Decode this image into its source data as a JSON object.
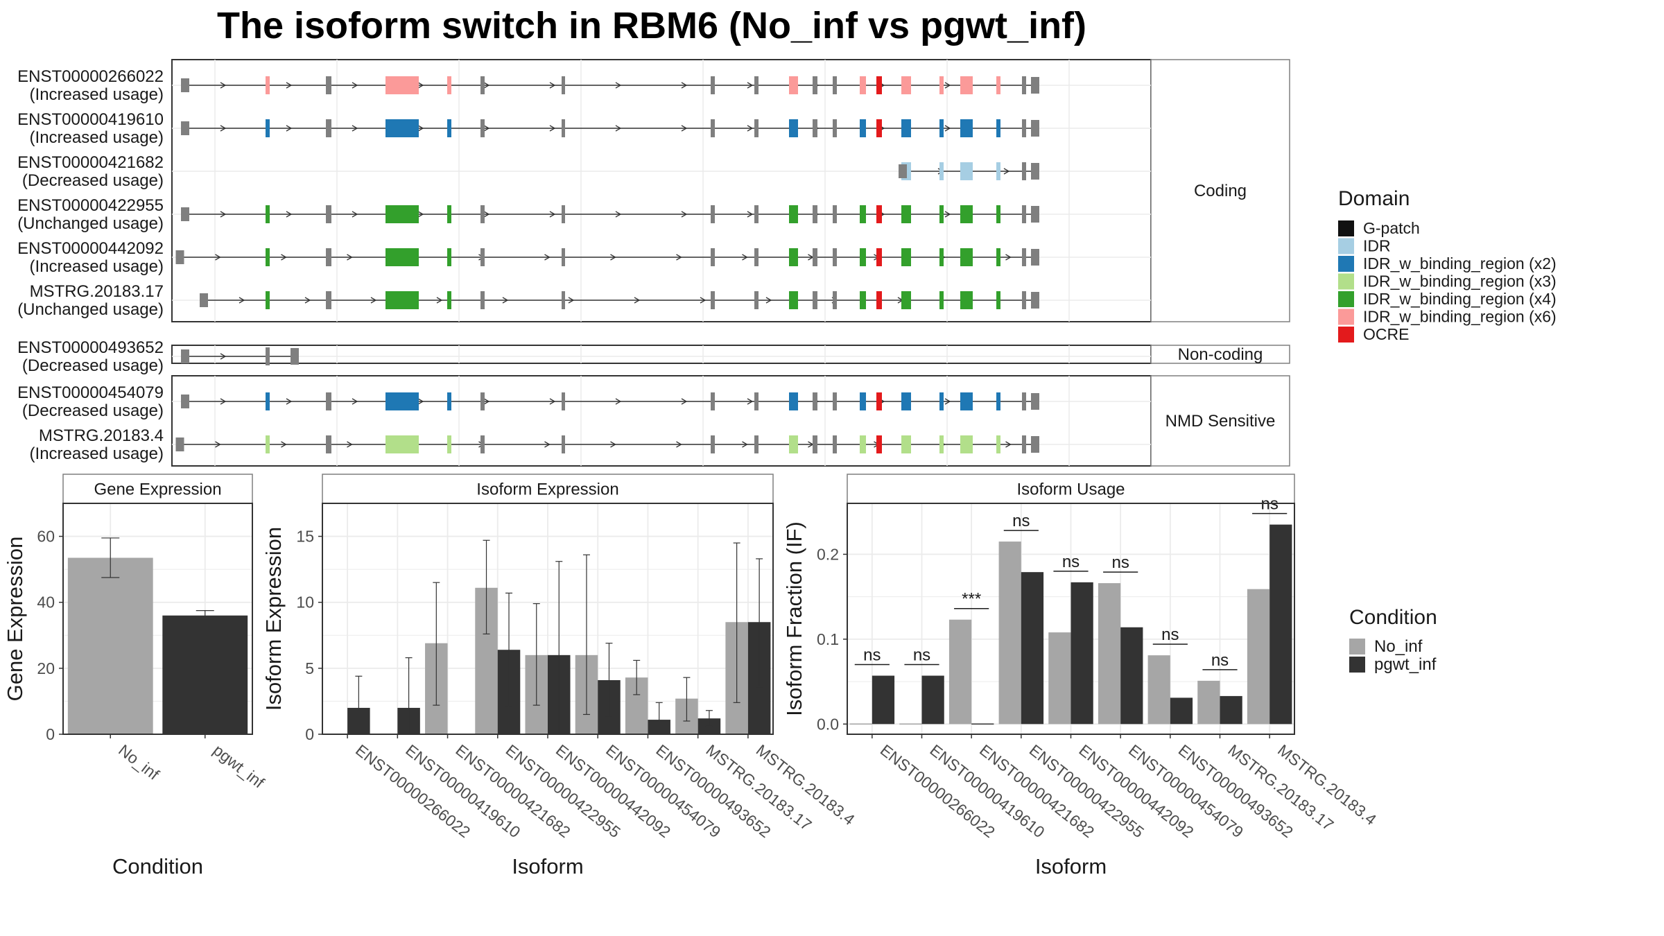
{
  "title": "The isoform switch in RBM6 (No_inf vs pgwt_inf)",
  "colors": {
    "intron": "#333333",
    "utr": "#7f7f7f",
    "panel_border": "#333333",
    "strip_border": "#7f7f7f",
    "grid": "#ebebeb",
    "no_inf": "#a6a6a6",
    "pgwt_inf": "#333333",
    "domains": {
      "gpatch": "#111111",
      "idr": "#a6cee3",
      "idr2": "#1f78b4",
      "idr3": "#b2df8a",
      "idr4": "#33a02c",
      "idr6": "#fb9a99",
      "ocre": "#e31a1c"
    }
  },
  "structure": {
    "coding_strip": "Coding",
    "noncoding_strip": "Non-coding",
    "nmd_strip": "NMD Sensitive",
    "coding_isoforms": [
      {
        "id": "ENST00000266022",
        "status": "(Increased usage)",
        "start": 210,
        "end": 1030,
        "domain": "idr6"
      },
      {
        "id": "ENST00000419610",
        "status": "(Increased usage)",
        "start": 210,
        "end": 1030,
        "domain": "idr2"
      },
      {
        "id": "ENST00000421682",
        "status": "(Decreased usage)",
        "start": 900,
        "end": 1030,
        "domain": "idr"
      },
      {
        "id": "ENST00000422955",
        "status": "(Unchanged usage)",
        "start": 210,
        "end": 1030,
        "domain": "idr4"
      },
      {
        "id": "ENST00000442092",
        "status": "(Increased usage)",
        "start": 205,
        "end": 1030,
        "domain": "idr4"
      },
      {
        "id": "MSTRG.20183.17",
        "status": "(Unchanged usage)",
        "start": 228,
        "end": 1030,
        "domain": "idr4"
      }
    ],
    "noncoding_isoforms": [
      {
        "id": "ENST00000493652",
        "status": "(Decreased usage)",
        "start": 210,
        "end": 318,
        "domain": ""
      }
    ],
    "nmd_isoforms": [
      {
        "id": "ENST00000454079",
        "status": "(Decreased usage)",
        "start": 210,
        "end": 1030,
        "domain": "idr2"
      },
      {
        "id": "MSTRG.20183.4",
        "status": "(Increased usage)",
        "start": 205,
        "end": 1030,
        "domain": "idr3"
      }
    ],
    "domain_legend": {
      "title": "Domain",
      "items": [
        {
          "label": "G-patch",
          "key": "gpatch"
        },
        {
          "label": "IDR",
          "key": "idr"
        },
        {
          "label": "IDR_w_binding_region (x2)",
          "key": "idr2"
        },
        {
          "label": "IDR_w_binding_region (x3)",
          "key": "idr3"
        },
        {
          "label": "IDR_w_binding_region (x4)",
          "key": "idr4"
        },
        {
          "label": "IDR_w_binding_region (x6)",
          "key": "idr6"
        },
        {
          "label": "OCRE",
          "key": "ocre"
        }
      ]
    }
  },
  "chart_data": [
    {
      "type": "bar",
      "title": "Gene Expression",
      "xlabel": "Condition",
      "ylabel": "Gene Expression",
      "ylim": [
        0,
        70
      ],
      "yticks": [
        0,
        20,
        40,
        60
      ],
      "categories": [
        "No_inf",
        "pgwt_inf"
      ],
      "values": [
        53.5,
        36
      ],
      "err_low": [
        47.5,
        35
      ],
      "err_high": [
        59.5,
        37.5
      ]
    },
    {
      "type": "bar",
      "title": "Isoform Expression",
      "xlabel": "Isoform",
      "ylabel": "Isoform Expression",
      "ylim": [
        0,
        17.5
      ],
      "yticks": [
        0,
        5,
        10,
        15
      ],
      "categories": [
        "ENST00000266022",
        "ENST00000419610",
        "ENST00000421682",
        "ENST00000422955",
        "ENST00000442092",
        "ENST00000454079",
        "ENST00000493652",
        "MSTRG.20183.17",
        "MSTRG.20183.4"
      ],
      "series": [
        {
          "name": "No_inf",
          "values": [
            0,
            0,
            6.9,
            11.1,
            6.0,
            6.0,
            4.3,
            2.7,
            8.5
          ],
          "err_low": [
            0,
            0,
            2.2,
            7.6,
            2.2,
            1.5,
            3.0,
            1.0,
            2.4
          ],
          "err_high": [
            0,
            0,
            11.5,
            14.7,
            9.9,
            13.6,
            5.6,
            4.3,
            14.5
          ]
        },
        {
          "name": "pgwt_inf",
          "values": [
            2.0,
            2.0,
            0,
            6.4,
            6.0,
            4.1,
            1.1,
            1.2,
            8.5
          ],
          "err_low": [
            0,
            0,
            0,
            2.1,
            0,
            1.3,
            0,
            0.6,
            3.6
          ],
          "err_high": [
            4.4,
            5.8,
            0,
            10.7,
            13.1,
            6.9,
            2.4,
            1.8,
            13.3
          ]
        }
      ]
    },
    {
      "type": "bar",
      "title": "Isoform Usage",
      "xlabel": "Isoform",
      "ylabel": "Isoform Fraction (IF)",
      "ylim": [
        -0.012,
        0.26
      ],
      "yticks": [
        0.0,
        0.1,
        0.2
      ],
      "ytick_labels": [
        "0.0",
        "0.1",
        "0.2"
      ],
      "categories": [
        "ENST00000266022",
        "ENST00000419610",
        "ENST00000421682",
        "ENST00000422955",
        "ENST00000442092",
        "ENST00000454079",
        "ENST00000493652",
        "MSTRG.20183.17",
        "MSTRG.20183.4"
      ],
      "series": [
        {
          "name": "No_inf",
          "values": [
            0,
            0,
            0.123,
            0.215,
            0.108,
            0.166,
            0.081,
            0.051,
            0.159
          ]
        },
        {
          "name": "pgwt_inf",
          "values": [
            0.057,
            0.057,
            0,
            0.179,
            0.167,
            0.114,
            0.031,
            0.033,
            0.235
          ]
        }
      ],
      "significance": [
        "ns",
        "ns",
        "***",
        "ns",
        "ns",
        "ns",
        "ns",
        "ns",
        "ns"
      ]
    }
  ],
  "condition_legend": {
    "title": "Condition",
    "items": [
      {
        "label": "No_inf",
        "key": "no_inf"
      },
      {
        "label": "pgwt_inf",
        "key": "pgwt_inf"
      }
    ]
  }
}
